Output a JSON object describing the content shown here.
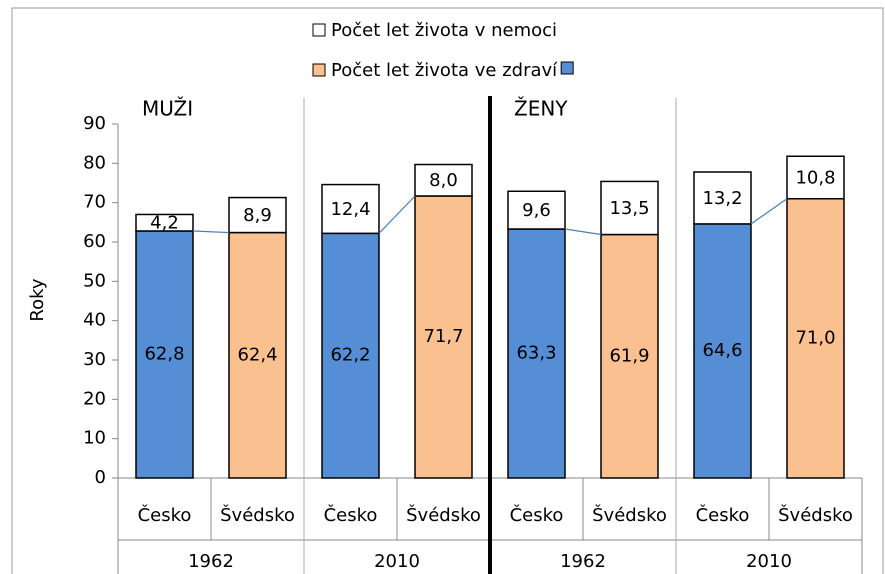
{
  "chart_data": {
    "type": "stacked_bar",
    "y_label": "Roky",
    "ylim": [
      0,
      90
    ],
    "yticks": [
      0,
      10,
      20,
      30,
      40,
      50,
      60,
      70,
      80,
      90
    ],
    "categories": [
      "Česko",
      "Švédsko",
      "Česko",
      "Švédsko",
      "Česko",
      "Švédsko",
      "Česko",
      "Švédsko"
    ],
    "groups": [
      "1962",
      "2010",
      "1962",
      "2010"
    ],
    "sections": [
      "MUŽI",
      "ŽENY"
    ],
    "series": [
      {
        "name": "Počet let života ve zdraví",
        "colors": [
          "#558ed5",
          "#fac090",
          "#558ed5",
          "#fac090",
          "#558ed5",
          "#fac090",
          "#558ed5",
          "#fac090"
        ],
        "values": [
          62.8,
          62.4,
          62.2,
          71.7,
          63.3,
          61.9,
          64.6,
          71.0
        ],
        "value_labels": [
          "62,8",
          "62,4",
          "62,2",
          "71,7",
          "63,3",
          "61,9",
          "64,6",
          "71,0"
        ]
      },
      {
        "name": "Počet let života v nemoci",
        "color": "#ffffff",
        "values": [
          4.2,
          8.9,
          12.4,
          8.0,
          9.6,
          13.5,
          13.2,
          10.8
        ],
        "value_labels": [
          "4,2",
          "8,9",
          "12,4",
          "8,0",
          "9,6",
          "13,5",
          "13,2",
          "10,8"
        ]
      }
    ]
  }
}
